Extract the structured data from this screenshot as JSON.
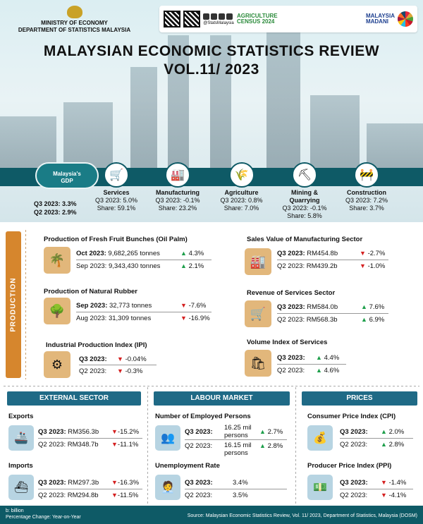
{
  "header": {
    "ministry_line1": "MINISTRY OF ECONOMY",
    "ministry_line2": "DEPARTMENT OF STATISTICS MALAYSIA",
    "social_handle": "@StatsMalaysia",
    "agri_line1": "AGRICULTURE",
    "agri_line2": "CENSUS 2024",
    "madani_line1": "MALAYSIA",
    "madani_line2": "MADANI"
  },
  "title": {
    "line1": "MALAYSIAN ECONOMIC STATISTICS REVIEW",
    "line2": "VOL.11/ 2023"
  },
  "gdp": {
    "label_line1": "Malaysia's",
    "label_line2": "GDP",
    "q3": "Q3 2023: 3.3%",
    "q2": "Q2 2023: 2.9%"
  },
  "sectors": [
    {
      "name": "Services",
      "l2": "Q3 2023: 5.0%",
      "l3": "Share: 59.1%",
      "l4": ""
    },
    {
      "name": "Manufacturing",
      "l2": "Q3 2023: -0.1%",
      "l3": "Share: 23.2%",
      "l4": ""
    },
    {
      "name": "Agriculture",
      "l2": "Q3 2023: 0.8%",
      "l3": "Share: 7.0%",
      "l4": ""
    },
    {
      "name": "Mining &",
      "l2": "Quarrying",
      "l3": "Q3 2023: -0.1%",
      "l4": "Share: 5.8%"
    },
    {
      "name": "Construction",
      "l2": "Q3 2023: 7.2%",
      "l3": "Share: 3.7%",
      "l4": ""
    }
  ],
  "production": {
    "tab": "PRODUCTION",
    "ffb": {
      "title": "Production of Fresh Fruit Bunches (Oil Palm)",
      "r1_label": "Oct 2023:",
      "r1_value": "9,682,265 tonnes",
      "r1_change": "4.3%",
      "r2_label": "Sep 2023:",
      "r2_value": "9,343,430 tonnes",
      "r2_change": "2.1%"
    },
    "rubber": {
      "title": "Production of Natural Rubber",
      "r1_label": "Sep 2023:",
      "r1_value": "32,773 tonnes",
      "r1_change": "-7.6%",
      "r2_label": "Aug 2023:",
      "r2_value": "31,309 tonnes",
      "r2_change": "-16.9%"
    },
    "ipi": {
      "title": "Industrial Production Index (IPI)",
      "r1_label": "Q3 2023:",
      "r1_change": "-0.04%",
      "r2_label": "Q2 2023:",
      "r2_change": "-0.3%"
    },
    "manuf": {
      "title": "Sales Value of Manufacturing Sector",
      "r1_label": "Q3 2023:",
      "r1_value": "RM454.8b",
      "r1_change": "-2.7%",
      "r2_label": "Q2 2023:",
      "r2_value": "RM439.2b",
      "r2_change": "-1.0%"
    },
    "services": {
      "title": "Revenue of Services Sector",
      "r1_label": "Q3 2023:",
      "r1_value": "RM584.0b",
      "r1_change": "7.6%",
      "r2_label": "Q2 2023:",
      "r2_value": "RM568.3b",
      "r2_change": "6.9%"
    },
    "volume": {
      "title": "Volume Index of Services",
      "r1_label": "Q3 2023:",
      "r1_change": "4.4%",
      "r2_label": "Q2 2023:",
      "r2_change": "4.6%"
    }
  },
  "external": {
    "head": "EXTERNAL SECTOR",
    "exports": {
      "title": "Exports",
      "r1_label": "Q3 2023:",
      "r1_value": "RM356.3b",
      "r1_change": "-15.2%",
      "r2_label": "Q2 2023:",
      "r2_value": "RM348.7b",
      "r2_change": "-11.1%"
    },
    "imports": {
      "title": "Imports",
      "r1_label": "Q3 2023:",
      "r1_value": "RM297.3b",
      "r1_change": "-16.3%",
      "r2_label": "Q2 2023:",
      "r2_value": "RM294.8b",
      "r2_change": "-11.5%"
    }
  },
  "labour": {
    "head": "LABOUR MARKET",
    "employed": {
      "title": "Number of Employed Persons",
      "r1_label": "Q3 2023:",
      "r1_value_a": "16.25 mil",
      "r1_value_b": "persons",
      "r1_change": "2.7%",
      "r2_label": "Q2 2023:",
      "r2_value_a": "16.15 mil",
      "r2_value_b": "persons",
      "r2_change": "2.8%"
    },
    "unemp": {
      "title": "Unemployment Rate",
      "r1_label": "Q3 2023:",
      "r1_value": "3.4%",
      "r2_label": "Q2 2023:",
      "r2_value": "3.5%"
    }
  },
  "prices": {
    "head": "PRICES",
    "cpi": {
      "title": "Consumer Price Index (CPI)",
      "r1_label": "Q3 2023:",
      "r1_change": "2.0%",
      "r2_label": "Q2 2023:",
      "r2_change": "2.8%"
    },
    "ppi": {
      "title": "Producer Price Index (PPI)",
      "r1_label": "Q3 2023:",
      "r1_change": "-1.4%",
      "r2_label": "Q2 2023:",
      "r2_change": "-4.1%"
    }
  },
  "footer": {
    "note1": "b: billion",
    "note2": "Percentage Change: Year-on-Year",
    "source": "Source: Malaysian Economic Statistics Review, Vol. 11/ 2023, Department of Statistics, Malaysia (DOSM)"
  },
  "colors": {
    "teal": "#0e5a66",
    "orange": "#d6862d",
    "blue_head": "#1f6a86",
    "up": "#1d9e4a",
    "down": "#d42020"
  }
}
